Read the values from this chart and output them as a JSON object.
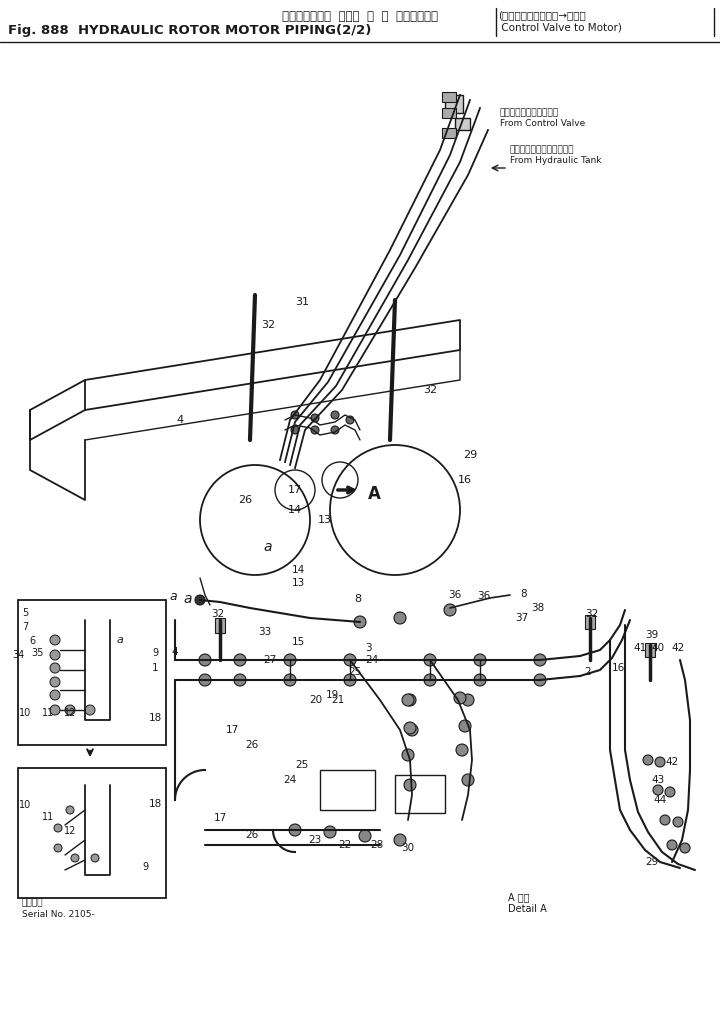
{
  "title_japanese": "ハイドロリック  ロータ  モ  ー  タパイピング",
  "title_english": "Fig. 888  HYDRAULIC ROTOR MOTOR PIPING(2/2)",
  "title_right_japanese": "コントロールバルブ→モータ",
  "title_right_english": "Control Valve to Motor",
  "label_from_control_valve_jp": "コントロールバルブから",
  "label_from_control_valve_en": "From Control Valve",
  "label_from_hydraulic_tank_jp": "ハイドロリックタンクから",
  "label_from_hydraulic_tank_en": "From Hydraulic Tank",
  "label_detail_a_jp": "A 詳細",
  "label_detail_a_en": "Detail A",
  "label_serial_jp": "適用号機",
  "label_serial_en": "Serial No. 2105-",
  "bg_color": "#ffffff",
  "line_color": "#1a1a1a",
  "fig_width": 7.2,
  "fig_height": 10.13,
  "dpi": 100
}
